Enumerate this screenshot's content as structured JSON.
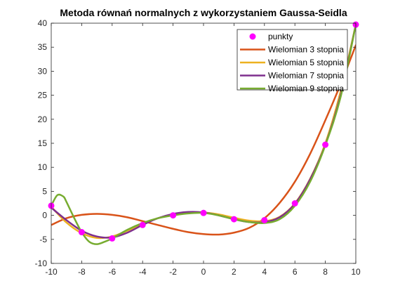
{
  "chart_data": {
    "type": "line",
    "title": "Metoda równań normalnych z wykorzystaniem Gaussa-Seidla",
    "xlabel": "",
    "ylabel": "",
    "xlim": [
      -10,
      10
    ],
    "ylim": [
      -10,
      40
    ],
    "xticks": [
      -10,
      -8,
      -6,
      -4,
      -2,
      0,
      2,
      4,
      6,
      8,
      10
    ],
    "yticks": [
      -10,
      -5,
      0,
      5,
      10,
      15,
      20,
      25,
      30,
      35,
      40
    ],
    "grid": false,
    "legend_position": "top-right",
    "points": {
      "name": "punkty",
      "color": "#ff00ff",
      "x": [
        -10,
        -8,
        -6,
        -4,
        -2,
        0,
        2,
        4,
        6,
        8,
        10
      ],
      "y": [
        2.0,
        -3.5,
        -4.8,
        -2.0,
        0.0,
        0.5,
        -0.8,
        -1.0,
        2.5,
        14.7,
        39.7
      ]
    },
    "series": [
      {
        "name": "Wielomian 3 stopnia",
        "color": "#d95319",
        "x": [
          -10,
          -9,
          -8,
          -7,
          -6,
          -5,
          -4,
          -3,
          -2,
          -1,
          0,
          1,
          2,
          3,
          4,
          5,
          6,
          7,
          8,
          9,
          10
        ],
        "y": [
          -2.0,
          -0.6,
          0.1,
          0.3,
          0.1,
          -0.4,
          -1.2,
          -2.0,
          -2.8,
          -3.5,
          -3.9,
          -4.0,
          -3.6,
          -2.6,
          -0.6,
          2.6,
          7.0,
          12.8,
          19.8,
          27.3,
          35.4
        ]
      },
      {
        "name": "Wielomian 5 stopnia",
        "color": "#edb120",
        "x": [
          -10,
          -9,
          -8,
          -7,
          -6,
          -5,
          -4,
          -3,
          -2,
          -1,
          0,
          1,
          2,
          3,
          4,
          5,
          6,
          7,
          8,
          9,
          10
        ],
        "y": [
          1.8,
          -1.5,
          -3.7,
          -4.7,
          -4.4,
          -3.2,
          -1.8,
          -0.6,
          0.2,
          0.6,
          0.6,
          0.2,
          -0.5,
          -1.1,
          -1.2,
          -0.3,
          2.5,
          7.6,
          15.0,
          25.8,
          39.7
        ]
      },
      {
        "name": "Wielomian 7 stopnia",
        "color": "#7e2f8e",
        "x": [
          -10,
          -9,
          -8,
          -7,
          -6,
          -5,
          -4,
          -3,
          -2,
          -1,
          0,
          1,
          2,
          3,
          4,
          5,
          6,
          7,
          8,
          9,
          10
        ],
        "y": [
          1.6,
          -1.0,
          -3.2,
          -4.4,
          -4.6,
          -3.6,
          -2.0,
          -0.6,
          0.3,
          0.7,
          0.6,
          0.0,
          -0.8,
          -1.4,
          -1.4,
          -0.4,
          2.4,
          7.5,
          14.7,
          25.0,
          39.7
        ]
      },
      {
        "name": "Wielomian 9 stopnia",
        "color": "#77ac30",
        "x": [
          -10,
          -9.6,
          -9.2,
          -9,
          -8.5,
          -8,
          -7.5,
          -7,
          -6.5,
          -6,
          -5,
          -4,
          -3,
          -2,
          -1,
          0,
          1,
          2,
          3,
          4,
          5,
          6,
          7,
          8,
          9,
          10
        ],
        "y": [
          2.0,
          4.2,
          3.9,
          2.8,
          -0.5,
          -3.5,
          -5.5,
          -6.0,
          -5.5,
          -4.8,
          -3.0,
          -1.6,
          -0.6,
          0.0,
          0.4,
          0.5,
          0.0,
          -0.8,
          -1.4,
          -1.6,
          -0.8,
          2.0,
          7.0,
          14.6,
          24.6,
          39.7
        ]
      }
    ]
  }
}
